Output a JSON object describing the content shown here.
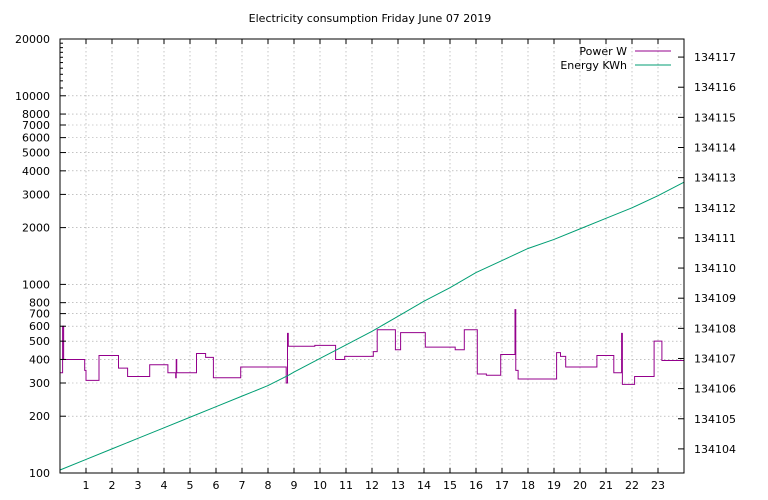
{
  "chart_data": {
    "type": "line",
    "title": "Electricity consumption Friday June 07 2019",
    "x": {
      "range": [
        0,
        24
      ],
      "ticks": [
        1,
        2,
        3,
        4,
        5,
        6,
        7,
        8,
        9,
        10,
        11,
        12,
        13,
        14,
        15,
        16,
        17,
        18,
        19,
        20,
        21,
        22,
        23
      ]
    },
    "y_left": {
      "scale": "log",
      "range": [
        100,
        20000
      ],
      "ticks": [
        100,
        200,
        300,
        400,
        500,
        600,
        700,
        800,
        1000,
        2000,
        3000,
        4000,
        5000,
        6000,
        7000,
        8000,
        10000,
        20000
      ]
    },
    "y_right": {
      "range": [
        134103.2,
        134117.6
      ],
      "ticks": [
        134104,
        134105,
        134106,
        134107,
        134108,
        134109,
        134110,
        134111,
        134112,
        134113,
        134114,
        134115,
        134116,
        134117
      ]
    },
    "grid": true,
    "legend_position": "top-right",
    "series": [
      {
        "name": "Power W",
        "axis": "left",
        "color": "#94008c",
        "points": [
          [
            0.0,
            340
          ],
          [
            0.1,
            340
          ],
          [
            0.1,
            600
          ],
          [
            0.14,
            600
          ],
          [
            0.14,
            400
          ],
          [
            0.95,
            400
          ],
          [
            0.95,
            350
          ],
          [
            1.0,
            350
          ],
          [
            1.0,
            310
          ],
          [
            1.5,
            310
          ],
          [
            1.5,
            420
          ],
          [
            2.25,
            420
          ],
          [
            2.25,
            360
          ],
          [
            2.6,
            360
          ],
          [
            2.6,
            325
          ],
          [
            3.45,
            325
          ],
          [
            3.45,
            375
          ],
          [
            4.15,
            375
          ],
          [
            4.15,
            340
          ],
          [
            4.45,
            340
          ],
          [
            4.45,
            320
          ],
          [
            4.47,
            320
          ],
          [
            4.47,
            400
          ],
          [
            4.49,
            400
          ],
          [
            4.49,
            340
          ],
          [
            5.25,
            340
          ],
          [
            5.25,
            430
          ],
          [
            5.6,
            430
          ],
          [
            5.6,
            410
          ],
          [
            5.9,
            410
          ],
          [
            5.9,
            320
          ],
          [
            6.95,
            320
          ],
          [
            6.95,
            365
          ],
          [
            8.7,
            365
          ],
          [
            8.7,
            300
          ],
          [
            8.75,
            300
          ],
          [
            8.75,
            550
          ],
          [
            8.78,
            550
          ],
          [
            8.78,
            470
          ],
          [
            9.8,
            470
          ],
          [
            9.8,
            475
          ],
          [
            10.6,
            475
          ],
          [
            10.6,
            400
          ],
          [
            10.95,
            400
          ],
          [
            10.95,
            415
          ],
          [
            12.05,
            415
          ],
          [
            12.05,
            440
          ],
          [
            12.2,
            440
          ],
          [
            12.2,
            575
          ],
          [
            12.9,
            575
          ],
          [
            12.9,
            450
          ],
          [
            13.1,
            450
          ],
          [
            13.1,
            555
          ],
          [
            14.05,
            555
          ],
          [
            14.05,
            465
          ],
          [
            15.2,
            465
          ],
          [
            15.2,
            450
          ],
          [
            15.55,
            450
          ],
          [
            15.55,
            575
          ],
          [
            16.05,
            575
          ],
          [
            16.05,
            335
          ],
          [
            16.4,
            335
          ],
          [
            16.4,
            330
          ],
          [
            16.95,
            330
          ],
          [
            16.95,
            425
          ],
          [
            17.5,
            425
          ],
          [
            17.5,
            735
          ],
          [
            17.53,
            735
          ],
          [
            17.53,
            350
          ],
          [
            17.62,
            350
          ],
          [
            17.62,
            315
          ],
          [
            19.1,
            315
          ],
          [
            19.1,
            435
          ],
          [
            19.25,
            435
          ],
          [
            19.25,
            415
          ],
          [
            19.45,
            415
          ],
          [
            19.45,
            365
          ],
          [
            20.65,
            365
          ],
          [
            20.65,
            420
          ],
          [
            21.3,
            420
          ],
          [
            21.3,
            340
          ],
          [
            21.6,
            340
          ],
          [
            21.6,
            550
          ],
          [
            21.63,
            550
          ],
          [
            21.63,
            295
          ],
          [
            22.1,
            295
          ],
          [
            22.1,
            325
          ],
          [
            22.85,
            325
          ],
          [
            22.85,
            500
          ],
          [
            23.15,
            500
          ],
          [
            23.15,
            395
          ],
          [
            24.0,
            395
          ]
        ]
      },
      {
        "name": "Energy KWh",
        "axis": "right",
        "color": "#009e73",
        "points": [
          [
            0.0,
            134103.3
          ],
          [
            1.0,
            134103.65
          ],
          [
            2.0,
            134104.0
          ],
          [
            3.0,
            134104.35
          ],
          [
            4.0,
            134104.7
          ],
          [
            5.0,
            134105.05
          ],
          [
            6.0,
            134105.4
          ],
          [
            7.0,
            134105.75
          ],
          [
            8.0,
            134106.1
          ],
          [
            8.8,
            134106.45
          ],
          [
            9.0,
            134106.55
          ],
          [
            10.0,
            134107.0
          ],
          [
            11.0,
            134107.45
          ],
          [
            12.0,
            134107.9
          ],
          [
            13.0,
            134108.4
          ],
          [
            14.0,
            134108.9
          ],
          [
            15.0,
            134109.35
          ],
          [
            16.0,
            134109.85
          ],
          [
            17.0,
            134110.25
          ],
          [
            18.0,
            134110.65
          ],
          [
            19.0,
            134110.95
          ],
          [
            20.0,
            134111.3
          ],
          [
            21.0,
            134111.65
          ],
          [
            22.0,
            134112.0
          ],
          [
            23.0,
            134112.4
          ],
          [
            24.0,
            134112.85
          ]
        ]
      }
    ]
  }
}
